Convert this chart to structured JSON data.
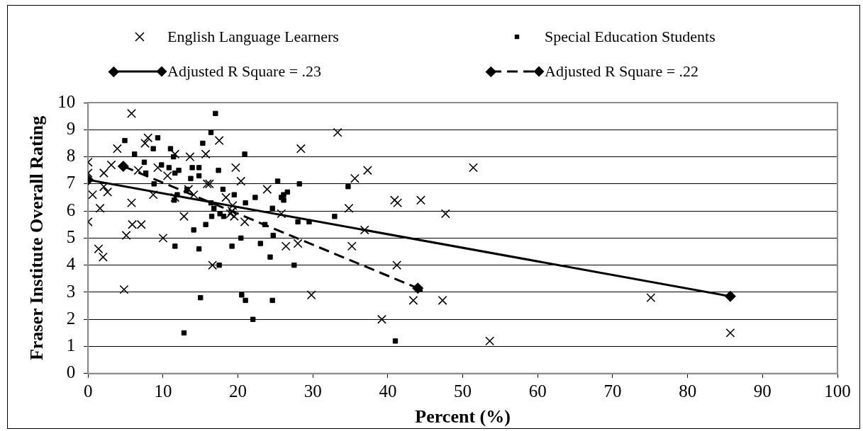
{
  "chart_data": {
    "type": "scatter",
    "xlabel": "Percent (%)",
    "ylabel": "Fraser Institute Overall Rating",
    "xlim": [
      0,
      100
    ],
    "xticks": [
      0,
      10,
      20,
      30,
      40,
      50,
      60,
      70,
      80,
      90,
      100
    ],
    "ylim": [
      0,
      10
    ],
    "yticks": [
      0,
      1,
      2,
      3,
      4,
      5,
      6,
      7,
      8,
      9,
      10
    ],
    "grid": "y",
    "legend": "top",
    "series": [
      {
        "name": "English Language Learners",
        "marker": "cross",
        "color": "#000000",
        "x": [
          5.8,
          8.0,
          7.6,
          3.9,
          17.5,
          15.7,
          13.6,
          11.6,
          0,
          3.1,
          0,
          2.1,
          6.7,
          9.3,
          10.6,
          2.1,
          0.6,
          2.6,
          15.9,
          16.2,
          13.4,
          14.1,
          8.7,
          11.6,
          5.8,
          1.6,
          12.8,
          0,
          5.9,
          7.1,
          5.1,
          10.0,
          1.4,
          2.0,
          4.8,
          16.6,
          28.4,
          33.3,
          19.7,
          20.4,
          23.9,
          18.4,
          19.3,
          19.0,
          19.5,
          19.2,
          20.9,
          25.8,
          26.4,
          28.0,
          29.8,
          51.4,
          37.3,
          35.6,
          40.9,
          41.3,
          44.4,
          34.8,
          47.7,
          36.9,
          35.2,
          41.2,
          43.4,
          47.3,
          39.2,
          53.6,
          75.1,
          85.7
        ],
        "values": [
          9.6,
          8.7,
          8.5,
          8.3,
          8.6,
          8.1,
          8.0,
          8.1,
          7.8,
          7.7,
          7.4,
          7.4,
          7.5,
          7.6,
          7.3,
          6.9,
          6.6,
          6.7,
          7.0,
          7.0,
          6.8,
          6.6,
          6.6,
          6.5,
          6.3,
          6.1,
          5.8,
          5.6,
          5.5,
          5.5,
          5.1,
          5.0,
          4.6,
          4.3,
          3.1,
          4.0,
          8.3,
          8.9,
          7.6,
          7.1,
          6.8,
          6.5,
          6.2,
          5.9,
          5.8,
          6.0,
          5.6,
          5.9,
          4.7,
          4.8,
          2.9,
          7.6,
          7.5,
          7.2,
          6.4,
          6.3,
          6.4,
          6.1,
          5.9,
          5.3,
          4.7,
          4.0,
          2.7,
          2.7,
          2.0,
          1.2,
          2.8,
          1.5
        ]
      },
      {
        "name": "Special Education Students",
        "marker": "square",
        "color": "#000000",
        "x": [
          17.0,
          4.9,
          9.3,
          8.7,
          6.2,
          16.4,
          15.3,
          11.0,
          11.4,
          7.5,
          9.8,
          7.7,
          10.8,
          11.6,
          12.1,
          13.9,
          14.8,
          13.7,
          14.8,
          17.4,
          8.8,
          13.2,
          11.9,
          11.5,
          16.4,
          16.8,
          17.6,
          16.5,
          15.7,
          14.1,
          11.6,
          14.8,
          17.5,
          15.0,
          12.8,
          20.9,
          25.3,
          28.2,
          34.7,
          18.0,
          19.5,
          22.3,
          26.6,
          26.1,
          25.8,
          26.1,
          21.0,
          24.6,
          18.1,
          32.9,
          28.0,
          29.5,
          23.6,
          20.4,
          24.7,
          23.0,
          19.2,
          24.3,
          27.5,
          20.5,
          21.0,
          24.6,
          22.0,
          41.0,
          44.3
        ],
        "values": [
          9.6,
          8.6,
          8.7,
          8.3,
          8.1,
          8.9,
          8.5,
          8.3,
          8.0,
          7.8,
          7.7,
          7.4,
          7.6,
          7.4,
          7.5,
          7.6,
          7.6,
          7.2,
          7.3,
          7.5,
          7.0,
          6.8,
          6.6,
          6.4,
          6.3,
          6.1,
          5.9,
          5.8,
          5.5,
          5.3,
          4.7,
          4.6,
          4.0,
          2.8,
          1.5,
          8.1,
          7.1,
          7.0,
          6.9,
          6.8,
          6.6,
          6.5,
          6.7,
          6.6,
          6.5,
          6.4,
          6.3,
          6.1,
          5.8,
          5.8,
          5.6,
          5.6,
          5.5,
          5.0,
          5.1,
          4.8,
          4.7,
          4.3,
          4.0,
          2.9,
          2.7,
          2.7,
          2.0,
          1.2,
          3.1
        ]
      },
      {
        "name": "Adjusted R Square = .23",
        "type": "line",
        "marker": "diamond",
        "line_style": "solid",
        "color": "#000000",
        "x": [
          0,
          85.7
        ],
        "values": [
          7.15,
          2.85
        ]
      },
      {
        "name": "Adjusted R Square = .22",
        "type": "line",
        "marker": "diamond",
        "line_style": "dashed",
        "color": "#000000",
        "x": [
          4.7,
          44.0
        ],
        "values": [
          7.65,
          3.15
        ]
      }
    ]
  }
}
